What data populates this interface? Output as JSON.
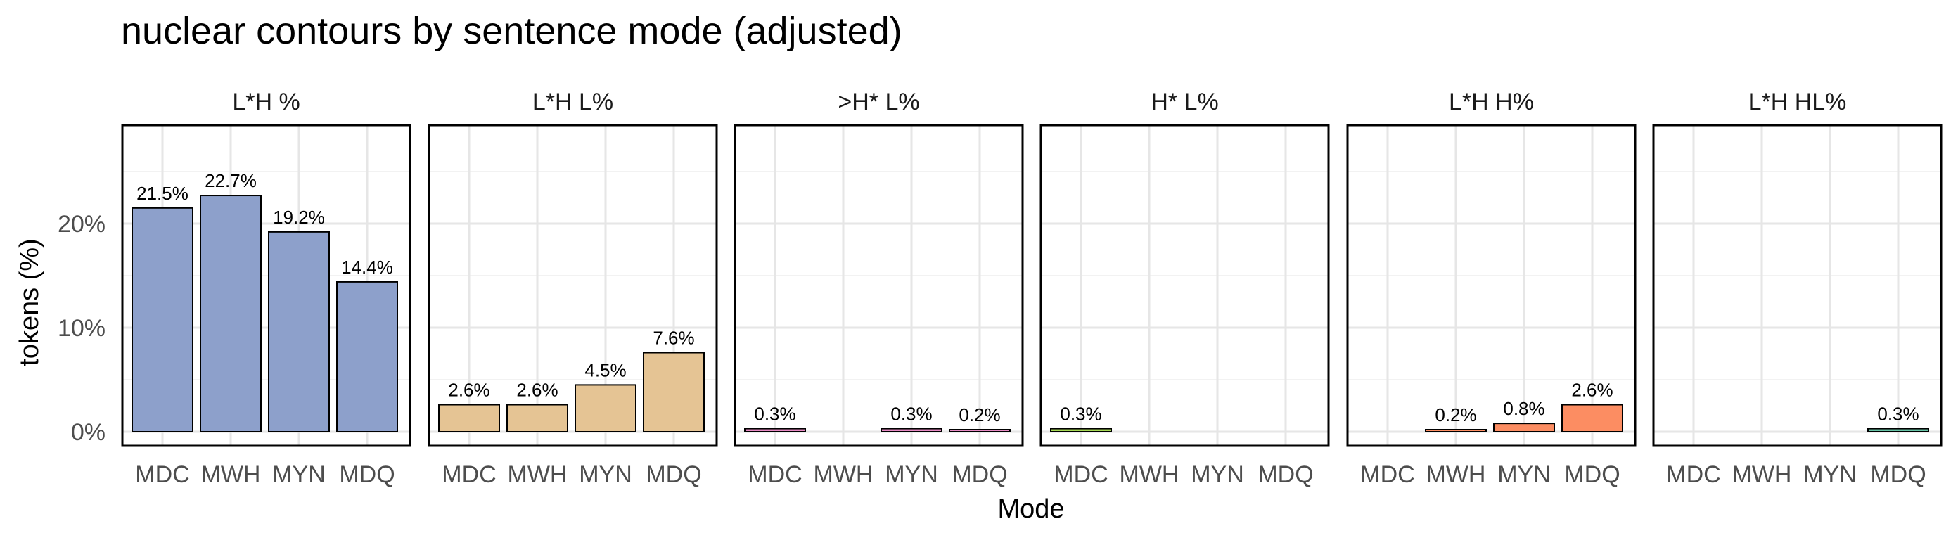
{
  "chart_data": {
    "type": "bar",
    "title": "nuclear contours by sentence mode (adjusted)",
    "xlabel": "Mode",
    "ylabel": "tokens (%)",
    "categories": [
      "MDC",
      "MWH",
      "MYN",
      "MDQ"
    ],
    "ylim": [
      0,
      30
    ],
    "y_ticks": [
      {
        "value": 0,
        "label": "0%"
      },
      {
        "value": 10,
        "label": "10%"
      },
      {
        "value": 20,
        "label": "20%"
      }
    ],
    "grid": true,
    "legend": "none",
    "panels": [
      {
        "name": "L*H %",
        "color": "#8DA0CB",
        "values": [
          21.5,
          22.7,
          19.2,
          14.4
        ],
        "labels": [
          "21.5%",
          "22.7%",
          "19.2%",
          "14.4%"
        ]
      },
      {
        "name": "L*H L%",
        "color": "#E5C494",
        "values": [
          2.6,
          2.6,
          4.5,
          7.6
        ],
        "labels": [
          "2.6%",
          "2.6%",
          "4.5%",
          "7.6%"
        ]
      },
      {
        "name": ">H* L%",
        "color": "#E78AC3",
        "values": [
          0.3,
          null,
          0.3,
          0.2
        ],
        "labels": [
          "0.3%",
          "",
          "0.3%",
          "0.2%"
        ]
      },
      {
        "name": "H* L%",
        "color": "#A6D854",
        "values": [
          0.3,
          null,
          null,
          null
        ],
        "labels": [
          "0.3%",
          "",
          "",
          ""
        ]
      },
      {
        "name": "L*H H%",
        "color": "#FC8D62",
        "values": [
          null,
          0.2,
          0.8,
          2.6
        ],
        "labels": [
          "",
          "0.2%",
          "0.8%",
          "2.6%"
        ]
      },
      {
        "name": "L*H HL%",
        "color": "#66C2A5",
        "values": [
          null,
          null,
          null,
          0.3
        ],
        "labels": [
          "",
          "",
          "",
          "0.3%"
        ]
      }
    ]
  }
}
